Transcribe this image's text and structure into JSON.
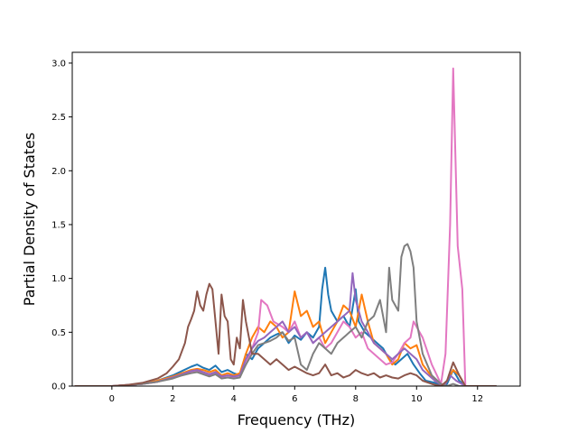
{
  "chart_data": {
    "type": "line",
    "title": "",
    "xlabel": "Frequency (THz)",
    "ylabel": "Partial Density of States",
    "xlim": [
      -1.3,
      13.4
    ],
    "ylim": [
      0,
      3.1
    ],
    "xticks": [
      0,
      2,
      4,
      6,
      8,
      10,
      12
    ],
    "xtick_labels": [
      "0",
      "2",
      "4",
      "6",
      "8",
      "10",
      "12"
    ],
    "yticks": [
      0,
      0.5,
      1.0,
      1.5,
      2.0,
      2.5,
      3.0
    ],
    "ytick_labels": [
      "0.0",
      "0.5",
      "1.0",
      "1.5",
      "2.0",
      "2.5",
      "3.0"
    ],
    "grid": false,
    "legend": "none",
    "series": [
      {
        "color": "#1f77b4",
        "x": [
          -1.2,
          0.0,
          1.0,
          1.5,
          2.0,
          2.3,
          2.6,
          2.8,
          3.0,
          3.2,
          3.4,
          3.6,
          3.8,
          4.0,
          4.2,
          4.4,
          4.6,
          4.8,
          5.0,
          5.2,
          5.4,
          5.6,
          5.8,
          6.0,
          6.2,
          6.4,
          6.6,
          6.8,
          6.9,
          7.0,
          7.1,
          7.2,
          7.4,
          7.6,
          7.8,
          8.0,
          8.1,
          8.3,
          8.5,
          8.7,
          8.9,
          9.1,
          9.3,
          9.5,
          9.7,
          9.9,
          10.1,
          10.3,
          10.6,
          10.9,
          11.0,
          11.2,
          11.4,
          11.6,
          12.0,
          12.6
        ],
        "y": [
          0,
          0,
          0.02,
          0.05,
          0.1,
          0.14,
          0.18,
          0.2,
          0.17,
          0.15,
          0.19,
          0.13,
          0.15,
          0.12,
          0.1,
          0.3,
          0.25,
          0.35,
          0.4,
          0.45,
          0.48,
          0.5,
          0.4,
          0.47,
          0.43,
          0.5,
          0.45,
          0.55,
          0.9,
          1.1,
          0.85,
          0.7,
          0.6,
          0.65,
          0.55,
          0.9,
          0.6,
          0.5,
          0.45,
          0.4,
          0.35,
          0.25,
          0.2,
          0.25,
          0.3,
          0.2,
          0.12,
          0.05,
          0.03,
          0.0,
          0.02,
          0.15,
          0.05,
          0.0,
          0.0,
          0.0
        ]
      },
      {
        "color": "#ff7f0e",
        "x": [
          -1.2,
          0.0,
          1.0,
          1.5,
          2.0,
          2.3,
          2.6,
          2.8,
          3.0,
          3.2,
          3.4,
          3.6,
          3.8,
          4.0,
          4.2,
          4.4,
          4.6,
          4.8,
          5.0,
          5.2,
          5.4,
          5.6,
          5.8,
          6.0,
          6.2,
          6.4,
          6.6,
          6.8,
          7.0,
          7.2,
          7.4,
          7.6,
          7.8,
          8.0,
          8.2,
          8.4,
          8.6,
          8.8,
          9.0,
          9.2,
          9.4,
          9.6,
          9.8,
          10.0,
          10.2,
          10.6,
          10.9,
          11.0,
          11.2,
          11.4,
          11.6,
          12.0,
          12.6
        ],
        "y": [
          0,
          0,
          0.02,
          0.05,
          0.09,
          0.12,
          0.15,
          0.16,
          0.15,
          0.13,
          0.15,
          0.1,
          0.12,
          0.1,
          0.12,
          0.3,
          0.45,
          0.55,
          0.5,
          0.6,
          0.55,
          0.45,
          0.5,
          0.88,
          0.65,
          0.7,
          0.55,
          0.6,
          0.4,
          0.5,
          0.6,
          0.75,
          0.7,
          0.55,
          0.85,
          0.6,
          0.4,
          0.35,
          0.3,
          0.2,
          0.25,
          0.4,
          0.35,
          0.38,
          0.2,
          0.05,
          0.0,
          0.05,
          0.15,
          0.1,
          0.0,
          0.0,
          0.0
        ]
      },
      {
        "color": "#e377c2",
        "x": [
          -1.2,
          0.0,
          1.0,
          1.5,
          2.0,
          2.3,
          2.6,
          2.8,
          3.0,
          3.2,
          3.4,
          3.6,
          3.8,
          4.0,
          4.2,
          4.4,
          4.6,
          4.8,
          4.9,
          5.1,
          5.3,
          5.6,
          5.8,
          6.0,
          6.2,
          6.4,
          6.6,
          6.8,
          7.0,
          7.2,
          7.4,
          7.6,
          7.8,
          8.0,
          8.2,
          8.4,
          8.6,
          8.8,
          9.0,
          9.2,
          9.4,
          9.6,
          9.8,
          9.9,
          10.0,
          10.2,
          10.5,
          10.8,
          10.95,
          11.1,
          11.2,
          11.35,
          11.5,
          11.6,
          12.0,
          12.6
        ],
        "y": [
          0,
          0,
          0.02,
          0.04,
          0.08,
          0.1,
          0.13,
          0.14,
          0.12,
          0.1,
          0.12,
          0.08,
          0.1,
          0.08,
          0.1,
          0.2,
          0.35,
          0.5,
          0.8,
          0.75,
          0.6,
          0.55,
          0.5,
          0.6,
          0.45,
          0.5,
          0.4,
          0.45,
          0.35,
          0.4,
          0.5,
          0.6,
          0.55,
          0.45,
          0.5,
          0.35,
          0.3,
          0.25,
          0.2,
          0.22,
          0.3,
          0.4,
          0.45,
          0.6,
          0.55,
          0.45,
          0.2,
          0.02,
          0.3,
          1.5,
          2.95,
          1.3,
          0.9,
          0.0,
          0.0,
          0.0
        ]
      },
      {
        "color": "#9467bd",
        "x": [
          -1.2,
          0.0,
          1.0,
          1.5,
          2.0,
          2.3,
          2.6,
          2.8,
          3.0,
          3.2,
          3.4,
          3.6,
          3.8,
          4.0,
          4.2,
          4.4,
          4.6,
          4.8,
          5.0,
          5.2,
          5.4,
          5.6,
          5.8,
          6.0,
          6.2,
          6.4,
          6.6,
          6.8,
          7.0,
          7.2,
          7.4,
          7.6,
          7.8,
          7.9,
          8.0,
          8.2,
          8.4,
          8.6,
          8.8,
          9.0,
          9.2,
          9.4,
          9.6,
          9.8,
          10.0,
          10.2,
          10.6,
          10.9,
          11.1,
          11.3,
          11.6,
          12.0,
          12.6
        ],
        "y": [
          0,
          0,
          0.02,
          0.04,
          0.08,
          0.11,
          0.14,
          0.15,
          0.13,
          0.11,
          0.13,
          0.09,
          0.1,
          0.09,
          0.1,
          0.25,
          0.35,
          0.42,
          0.45,
          0.5,
          0.55,
          0.6,
          0.5,
          0.55,
          0.45,
          0.5,
          0.4,
          0.45,
          0.5,
          0.55,
          0.6,
          0.65,
          0.7,
          1.05,
          0.8,
          0.6,
          0.5,
          0.4,
          0.35,
          0.3,
          0.25,
          0.3,
          0.35,
          0.3,
          0.25,
          0.15,
          0.05,
          0.0,
          0.1,
          0.05,
          0.0,
          0.0,
          0.0
        ]
      },
      {
        "color": "#7f7f7f",
        "x": [
          -1.2,
          0.0,
          1.0,
          1.5,
          2.0,
          2.3,
          2.6,
          2.8,
          3.0,
          3.2,
          3.4,
          3.6,
          3.8,
          4.0,
          4.2,
          4.4,
          4.6,
          4.8,
          5.0,
          5.2,
          5.4,
          5.6,
          5.8,
          6.0,
          6.2,
          6.4,
          6.6,
          6.8,
          7.0,
          7.2,
          7.4,
          7.6,
          7.8,
          8.0,
          8.2,
          8.4,
          8.6,
          8.8,
          9.0,
          9.1,
          9.2,
          9.4,
          9.5,
          9.6,
          9.7,
          9.8,
          9.9,
          10.0,
          10.2,
          10.5,
          10.8,
          11.0,
          11.2,
          11.4,
          11.6,
          12.0,
          12.6
        ],
        "y": [
          0,
          0,
          0.02,
          0.04,
          0.07,
          0.1,
          0.12,
          0.13,
          0.11,
          0.09,
          0.11,
          0.07,
          0.08,
          0.07,
          0.08,
          0.2,
          0.3,
          0.38,
          0.4,
          0.42,
          0.45,
          0.5,
          0.42,
          0.45,
          0.2,
          0.15,
          0.3,
          0.4,
          0.35,
          0.3,
          0.4,
          0.45,
          0.5,
          0.55,
          0.45,
          0.6,
          0.65,
          0.8,
          0.5,
          1.1,
          0.8,
          0.7,
          1.2,
          1.3,
          1.32,
          1.25,
          1.1,
          0.6,
          0.3,
          0.1,
          0.02,
          0.0,
          0.02,
          0.0,
          0.0,
          0.0,
          0.0
        ]
      },
      {
        "color": "#8c564b",
        "x": [
          -1.2,
          0.0,
          0.5,
          1.0,
          1.5,
          1.8,
          2.0,
          2.2,
          2.4,
          2.5,
          2.6,
          2.7,
          2.8,
          2.9,
          3.0,
          3.1,
          3.2,
          3.3,
          3.4,
          3.5,
          3.6,
          3.7,
          3.8,
          3.9,
          4.0,
          4.1,
          4.2,
          4.3,
          4.4,
          4.5,
          4.6,
          4.8,
          5.0,
          5.2,
          5.4,
          5.6,
          5.8,
          6.0,
          6.2,
          6.4,
          6.6,
          6.8,
          7.0,
          7.2,
          7.4,
          7.6,
          7.8,
          8.0,
          8.2,
          8.4,
          8.6,
          8.8,
          9.0,
          9.2,
          9.4,
          9.6,
          9.8,
          10.0,
          10.2,
          10.5,
          10.8,
          11.0,
          11.2,
          11.4,
          11.6,
          12.0,
          12.6
        ],
        "y": [
          0,
          0,
          0.01,
          0.03,
          0.07,
          0.12,
          0.18,
          0.25,
          0.4,
          0.55,
          0.62,
          0.7,
          0.88,
          0.75,
          0.7,
          0.85,
          0.95,
          0.9,
          0.6,
          0.3,
          0.85,
          0.65,
          0.6,
          0.25,
          0.2,
          0.45,
          0.35,
          0.8,
          0.6,
          0.45,
          0.3,
          0.3,
          0.25,
          0.2,
          0.25,
          0.2,
          0.15,
          0.18,
          0.15,
          0.12,
          0.1,
          0.12,
          0.2,
          0.1,
          0.12,
          0.08,
          0.1,
          0.15,
          0.12,
          0.1,
          0.12,
          0.08,
          0.1,
          0.08,
          0.07,
          0.1,
          0.12,
          0.1,
          0.05,
          0.02,
          0.0,
          0.05,
          0.22,
          0.1,
          0.0,
          0.0,
          0.0
        ]
      }
    ]
  }
}
